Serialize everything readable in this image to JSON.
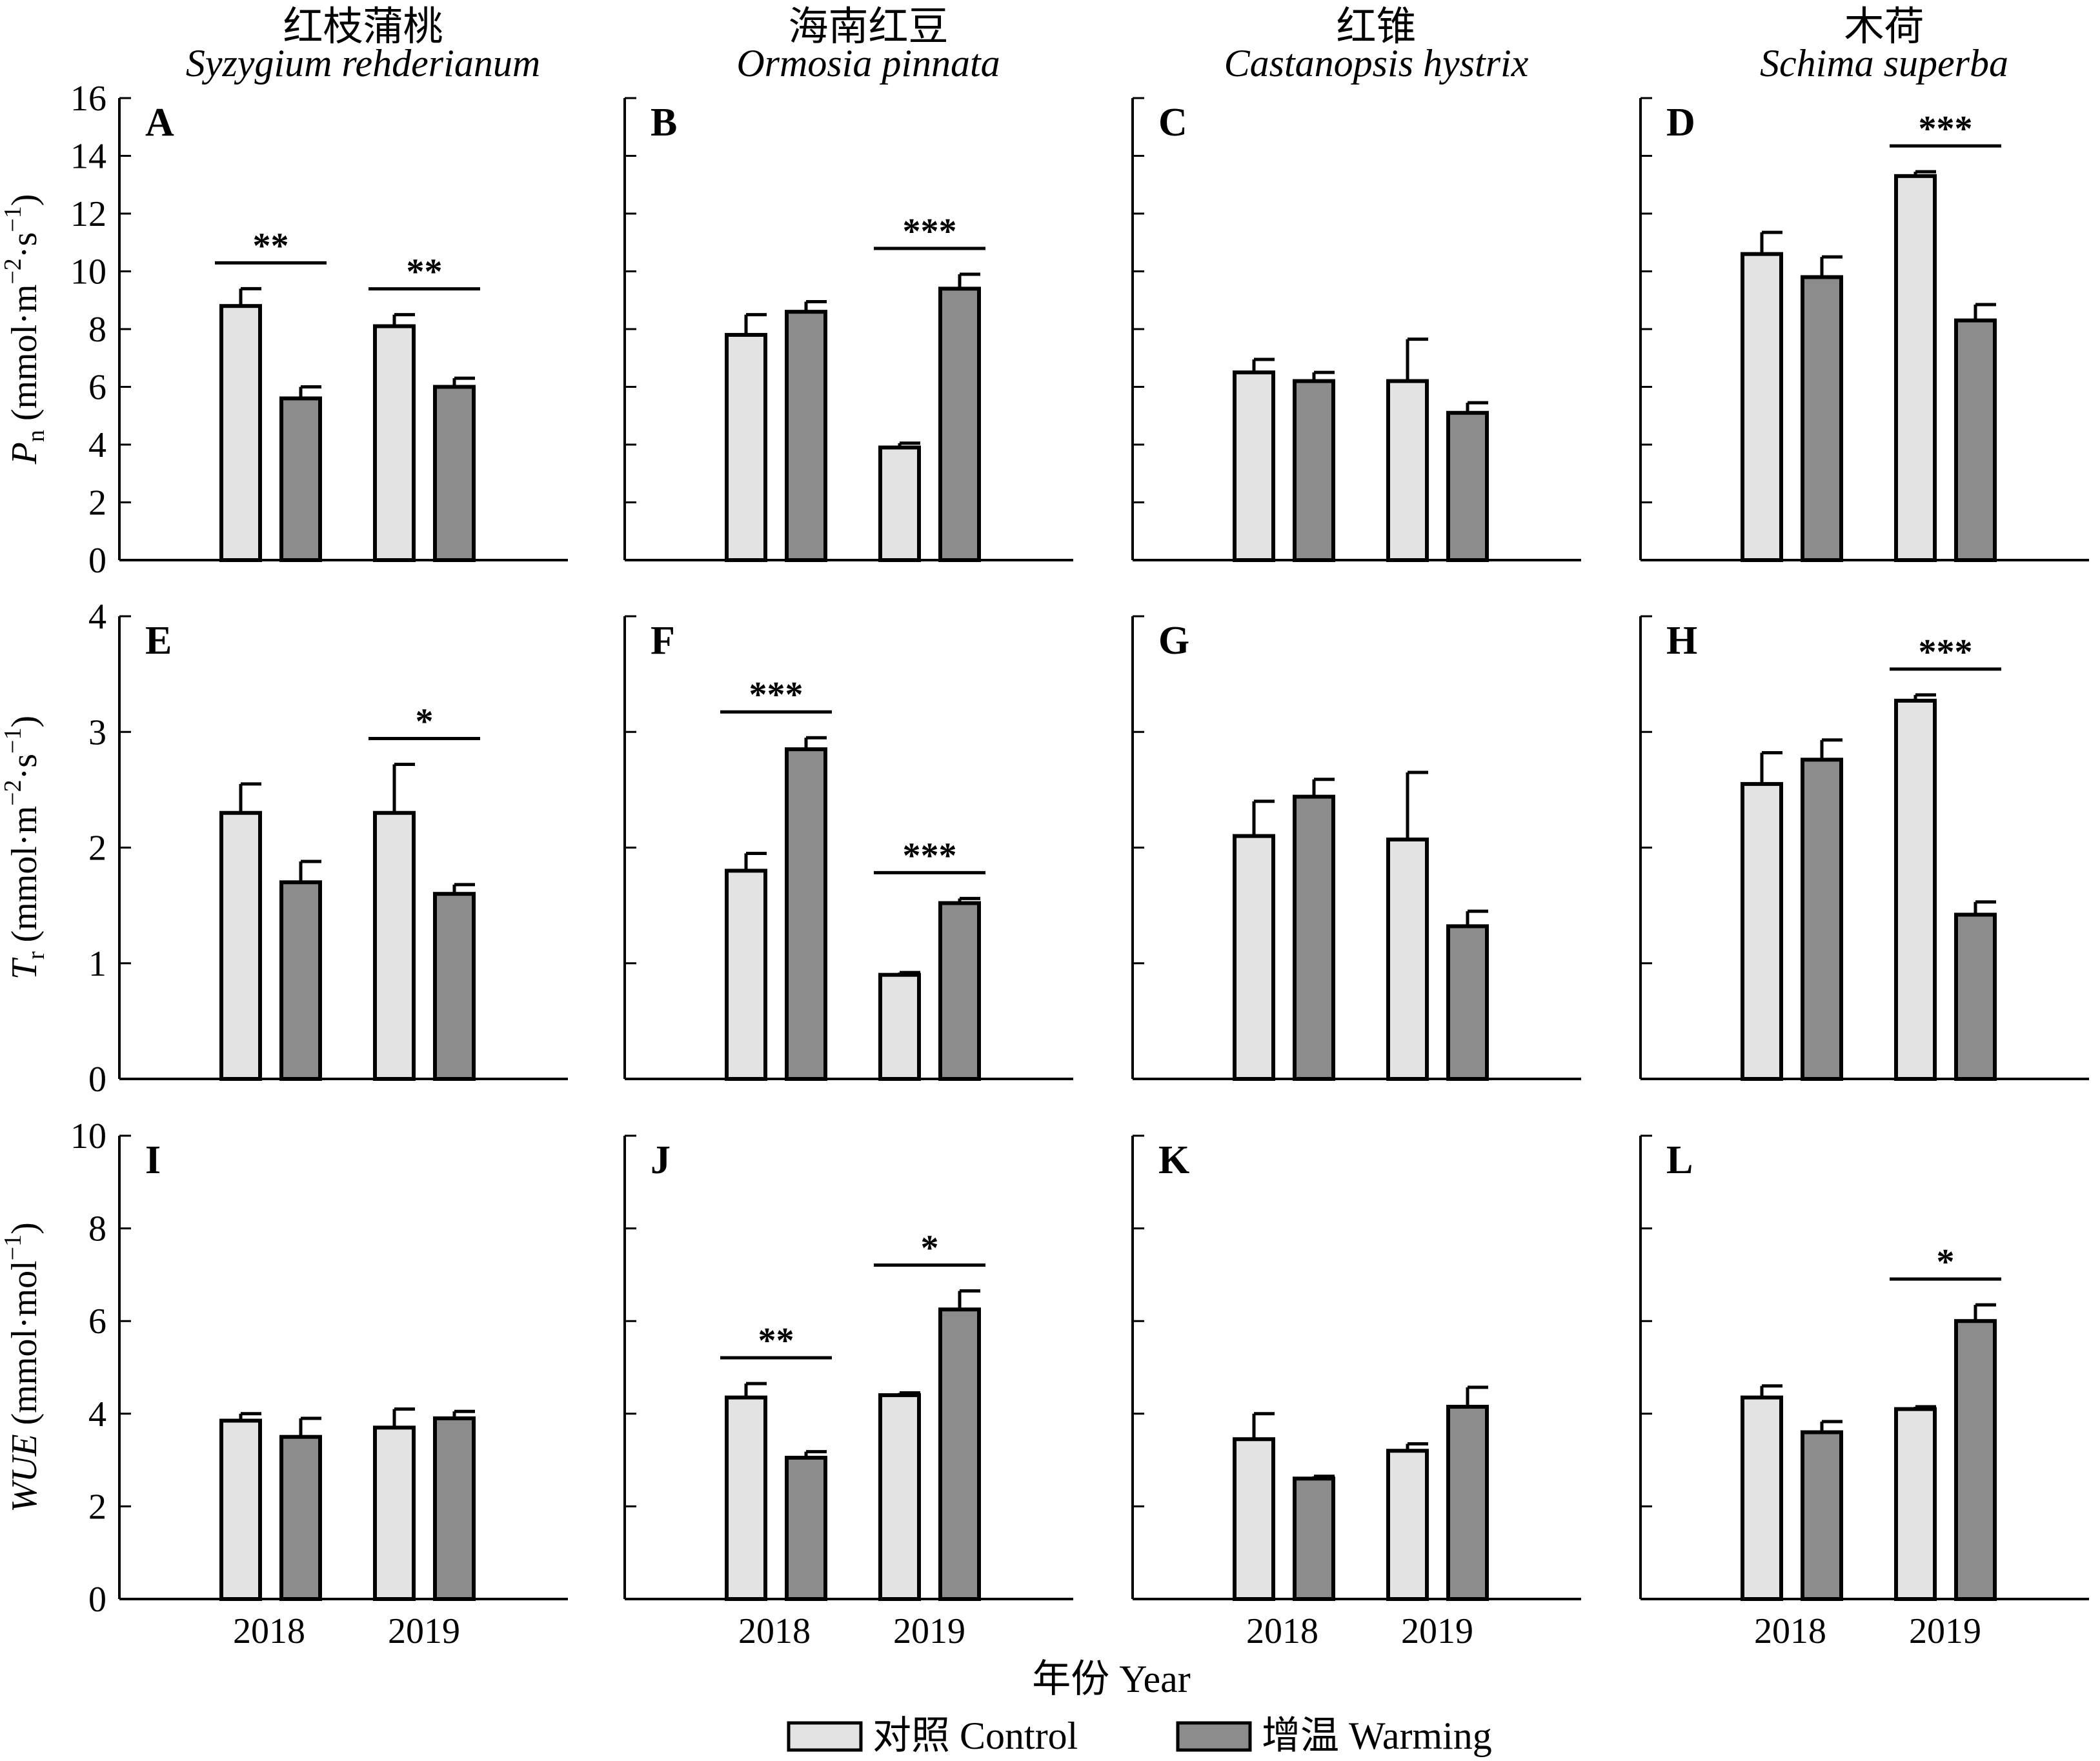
{
  "figure": {
    "x_title": "年份 Year",
    "legend": [
      {
        "label": "对照 Control",
        "color": "#e3e3e3"
      },
      {
        "label": "增温 Warming",
        "color": "#8c8c8c"
      }
    ],
    "columns": [
      {
        "cn": "红枝蒲桃",
        "sci": "Syzygium rehderianum"
      },
      {
        "cn": "海南红豆",
        "sci": "Ormosia pinnata"
      },
      {
        "cn": "红锥",
        "sci": "Castanopsis hystrix"
      },
      {
        "cn": "木荷",
        "sci": "Schima superba"
      }
    ],
    "rows": [
      {
        "metric": "Pn",
        "label_main": "P",
        "label_sub": "n",
        "label_unit_a": " (mmol·m",
        "label_sup1": "−2",
        "label_unit_b": "·s",
        "label_sup2": "−1",
        "label_close": ")",
        "ylim": [
          0,
          16
        ],
        "ticks": [
          0,
          2,
          4,
          6,
          8,
          10,
          12,
          14,
          16
        ]
      },
      {
        "metric": "Tr",
        "label_main": "T",
        "label_sub": "r",
        "label_unit_a": " (mmol·m",
        "label_sup1": "−2",
        "label_unit_b": "·s",
        "label_sup2": "−1",
        "label_close": ")",
        "ylim": [
          0,
          4
        ],
        "ticks": [
          0,
          1,
          2,
          3,
          4
        ]
      },
      {
        "metric": "WUE",
        "label_main": "WUE",
        "label_sub": "",
        "label_unit_a": " (mmol·mol",
        "label_sup1": "−1",
        "label_unit_b": "",
        "label_sup2": "",
        "label_close": ")",
        "ylim": [
          0,
          10
        ],
        "ticks": [
          0,
          2,
          4,
          6,
          8,
          10
        ]
      }
    ]
  },
  "chart_data": [
    {
      "panel": "A",
      "type": "bar",
      "categories": [
        "2018",
        "2019"
      ],
      "series": [
        {
          "name": "对照 Control",
          "values": [
            8.8,
            8.1
          ],
          "errors": [
            0.6,
            0.4
          ]
        },
        {
          "name": "增温 Warming",
          "values": [
            5.6,
            6.0
          ],
          "errors": [
            0.4,
            0.3
          ]
        }
      ],
      "significance": [
        {
          "category": "2018",
          "label": "**"
        },
        {
          "category": "2019",
          "label": "**"
        }
      ]
    },
    {
      "panel": "B",
      "type": "bar",
      "categories": [
        "2018",
        "2019"
      ],
      "series": [
        {
          "name": "对照 Control",
          "values": [
            7.8,
            3.9
          ],
          "errors": [
            0.7,
            0.15
          ]
        },
        {
          "name": "增温 Warming",
          "values": [
            8.6,
            9.4
          ],
          "errors": [
            0.35,
            0.5
          ]
        }
      ],
      "significance": [
        {
          "category": "2019",
          "label": "***"
        }
      ]
    },
    {
      "panel": "C",
      "type": "bar",
      "categories": [
        "2018",
        "2019"
      ],
      "series": [
        {
          "name": "对照 Control",
          "values": [
            6.5,
            6.2
          ],
          "errors": [
            0.45,
            1.45
          ]
        },
        {
          "name": "增温 Warming",
          "values": [
            6.2,
            5.1
          ],
          "errors": [
            0.3,
            0.35
          ]
        }
      ],
      "significance": []
    },
    {
      "panel": "D",
      "type": "bar",
      "categories": [
        "2018",
        "2019"
      ],
      "series": [
        {
          "name": "对照 Control",
          "values": [
            10.6,
            13.3
          ],
          "errors": [
            0.75,
            0.15
          ]
        },
        {
          "name": "增温 Warming",
          "values": [
            9.8,
            8.3
          ],
          "errors": [
            0.7,
            0.55
          ]
        }
      ],
      "significance": [
        {
          "category": "2019",
          "label": "***"
        }
      ]
    },
    {
      "panel": "E",
      "type": "bar",
      "categories": [
        "2018",
        "2019"
      ],
      "series": [
        {
          "name": "对照 Control",
          "values": [
            2.3,
            2.3
          ],
          "errors": [
            0.25,
            0.42
          ]
        },
        {
          "name": "增温 Warming",
          "values": [
            1.7,
            1.6
          ],
          "errors": [
            0.18,
            0.08
          ]
        }
      ],
      "significance": [
        {
          "category": "2019",
          "label": "*"
        }
      ]
    },
    {
      "panel": "F",
      "type": "bar",
      "categories": [
        "2018",
        "2019"
      ],
      "series": [
        {
          "name": "对照 Control",
          "values": [
            1.8,
            0.9
          ],
          "errors": [
            0.15,
            0.02
          ]
        },
        {
          "name": "增温 Warming",
          "values": [
            2.85,
            1.52
          ],
          "errors": [
            0.1,
            0.04
          ]
        }
      ],
      "significance": [
        {
          "category": "2018",
          "label": "***"
        },
        {
          "category": "2019",
          "label": "***"
        }
      ]
    },
    {
      "panel": "G",
      "type": "bar",
      "categories": [
        "2018",
        "2019"
      ],
      "series": [
        {
          "name": "对照 Control",
          "values": [
            2.1,
            2.07
          ],
          "errors": [
            0.3,
            0.58
          ]
        },
        {
          "name": "增温 Warming",
          "values": [
            2.44,
            1.32
          ],
          "errors": [
            0.15,
            0.13
          ]
        }
      ],
      "significance": []
    },
    {
      "panel": "H",
      "type": "bar",
      "categories": [
        "2018",
        "2019"
      ],
      "series": [
        {
          "name": "对照 Control",
          "values": [
            2.55,
            3.27
          ],
          "errors": [
            0.27,
            0.05
          ]
        },
        {
          "name": "增温 Warming",
          "values": [
            2.76,
            1.42
          ],
          "errors": [
            0.17,
            0.11
          ]
        }
      ],
      "significance": [
        {
          "category": "2019",
          "label": "***"
        }
      ]
    },
    {
      "panel": "I",
      "type": "bar",
      "categories": [
        "2018",
        "2019"
      ],
      "series": [
        {
          "name": "对照 Control",
          "values": [
            3.85,
            3.7
          ],
          "errors": [
            0.15,
            0.4
          ]
        },
        {
          "name": "增温 Warming",
          "values": [
            3.5,
            3.9
          ],
          "errors": [
            0.4,
            0.15
          ]
        }
      ],
      "significance": []
    },
    {
      "panel": "J",
      "type": "bar",
      "categories": [
        "2018",
        "2019"
      ],
      "series": [
        {
          "name": "对照 Control",
          "values": [
            4.35,
            4.4
          ],
          "errors": [
            0.3,
            0.05
          ]
        },
        {
          "name": "增温 Warming",
          "values": [
            3.05,
            6.25
          ],
          "errors": [
            0.13,
            0.4
          ]
        }
      ],
      "significance": [
        {
          "category": "2018",
          "label": "**"
        },
        {
          "category": "2019",
          "label": "*"
        }
      ]
    },
    {
      "panel": "K",
      "type": "bar",
      "categories": [
        "2018",
        "2019"
      ],
      "series": [
        {
          "name": "对照 Control",
          "values": [
            3.45,
            3.2
          ],
          "errors": [
            0.55,
            0.15
          ]
        },
        {
          "name": "增温 Warming",
          "values": [
            2.6,
            4.15
          ],
          "errors": [
            0.05,
            0.42
          ]
        }
      ],
      "significance": []
    },
    {
      "panel": "L",
      "type": "bar",
      "categories": [
        "2018",
        "2019"
      ],
      "series": [
        {
          "name": "对照 Control",
          "values": [
            4.35,
            4.1
          ],
          "errors": [
            0.25,
            0.05
          ]
        },
        {
          "name": "增温 Warming",
          "values": [
            3.6,
            6.0
          ],
          "errors": [
            0.23,
            0.35
          ]
        }
      ],
      "significance": [
        {
          "category": "2019",
          "label": "*"
        }
      ]
    }
  ]
}
